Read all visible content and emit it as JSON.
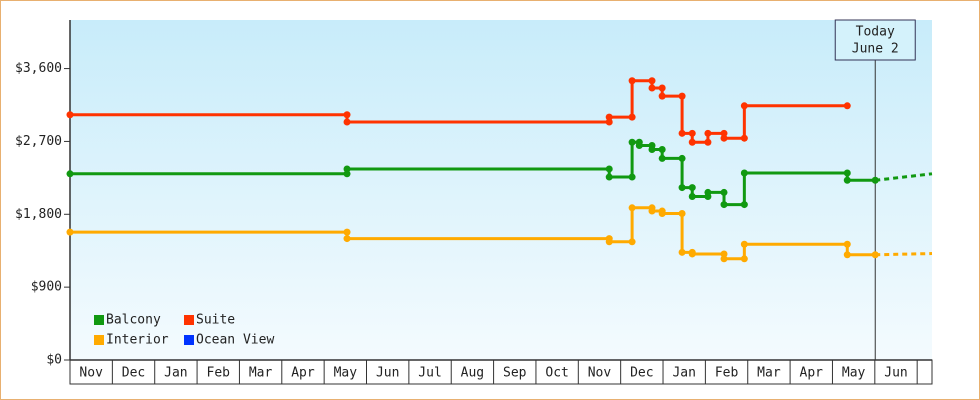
{
  "chart_data": {
    "type": "step",
    "months": [
      "Nov",
      "Dec",
      "Jan",
      "Feb",
      "Mar",
      "Apr",
      "May",
      "Jun",
      "Jul",
      "Aug",
      "Sep",
      "Oct",
      "Nov",
      "Dec",
      "Jan",
      "Feb",
      "Mar",
      "Apr",
      "May",
      "Jun"
    ],
    "xlim": [
      0,
      20.35
    ],
    "ylim": [
      0,
      4200
    ],
    "yticks": [
      {
        "value": 0,
        "label": "$0"
      },
      {
        "value": 900,
        "label": "$900"
      },
      {
        "value": 1800,
        "label": "$1,800"
      },
      {
        "value": 2700,
        "label": "$2,700"
      },
      {
        "value": 3600,
        "label": "$3,600"
      }
    ],
    "legend": "bottom-left",
    "annotation": {
      "x": 19.01,
      "lines": [
        "Today",
        "June 2"
      ]
    },
    "series": [
      {
        "name": "Balcony",
        "color": "#119911",
        "x": [
          0,
          6.54,
          12.73,
          13.27,
          13.44,
          13.74,
          13.98,
          14.45,
          14.69,
          15.06,
          15.44,
          15.92,
          18.35,
          19.01
        ],
        "values": [
          2300,
          2360,
          2260,
          2690,
          2650,
          2600,
          2490,
          2130,
          2020,
          2070,
          1920,
          2310,
          2220,
          2220
        ],
        "forecast": {
          "x": [
            19.01,
            20.35
          ],
          "values": [
            2220,
            2300
          ]
        }
      },
      {
        "name": "Suite",
        "color": "#ff3300",
        "x": [
          0,
          6.54,
          12.73,
          13.27,
          13.74,
          13.98,
          14.45,
          14.69,
          15.06,
          15.44,
          15.92,
          18.35
        ],
        "values": [
          3030,
          2940,
          3000,
          3450,
          3360,
          3260,
          2800,
          2690,
          2800,
          2740,
          3140,
          3140
        ]
      },
      {
        "name": "Interior",
        "color": "#ffaa00",
        "x": [
          0,
          6.54,
          12.73,
          13.27,
          13.74,
          13.98,
          14.45,
          14.69,
          15.44,
          15.92,
          18.35,
          19.01
        ],
        "values": [
          1580,
          1500,
          1460,
          1880,
          1840,
          1810,
          1330,
          1310,
          1250,
          1430,
          1300,
          1300
        ],
        "forecast": {
          "x": [
            19.01,
            20.35
          ],
          "values": [
            1300,
            1315
          ]
        }
      },
      {
        "name": "Ocean View",
        "color": "#0033ff",
        "x": [],
        "values": []
      }
    ]
  }
}
